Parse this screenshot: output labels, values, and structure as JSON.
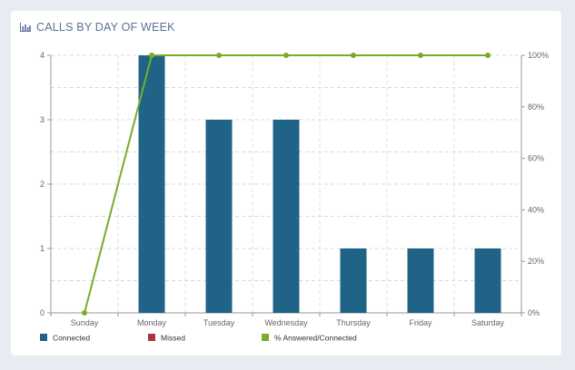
{
  "header": {
    "title": "CALLS BY DAY OF WEEK",
    "icon": "bar-chart-icon"
  },
  "chart_data": {
    "type": "bar",
    "title": "CALLS BY DAY OF WEEK",
    "categories": [
      "Sunday",
      "Monday",
      "Tuesday",
      "Wednesday",
      "Thursday",
      "Friday",
      "Saturday"
    ],
    "series": [
      {
        "name": "Connected",
        "type": "bar",
        "axis": "left",
        "color": "#1f6487",
        "values": [
          0,
          4,
          3,
          3,
          1,
          1,
          1
        ]
      },
      {
        "name": "Missed",
        "type": "bar",
        "axis": "left",
        "color": "#a8353f",
        "values": [
          0,
          0,
          0,
          0,
          0,
          0,
          0
        ]
      },
      {
        "name": "% Answered/Connected",
        "type": "line",
        "axis": "right",
        "color": "#7aab2b",
        "values": [
          0,
          100,
          100,
          100,
          100,
          100,
          100
        ]
      }
    ],
    "y_left": {
      "ylim": [
        0,
        4
      ],
      "ticks": [
        "0",
        "1",
        "2",
        "3",
        "4"
      ]
    },
    "y_right": {
      "ylim": [
        0,
        100
      ],
      "ticks": [
        "0%",
        "20%",
        "40%",
        "60%",
        "80%",
        "100%"
      ]
    },
    "grid": true,
    "legend": "bottom-left"
  }
}
